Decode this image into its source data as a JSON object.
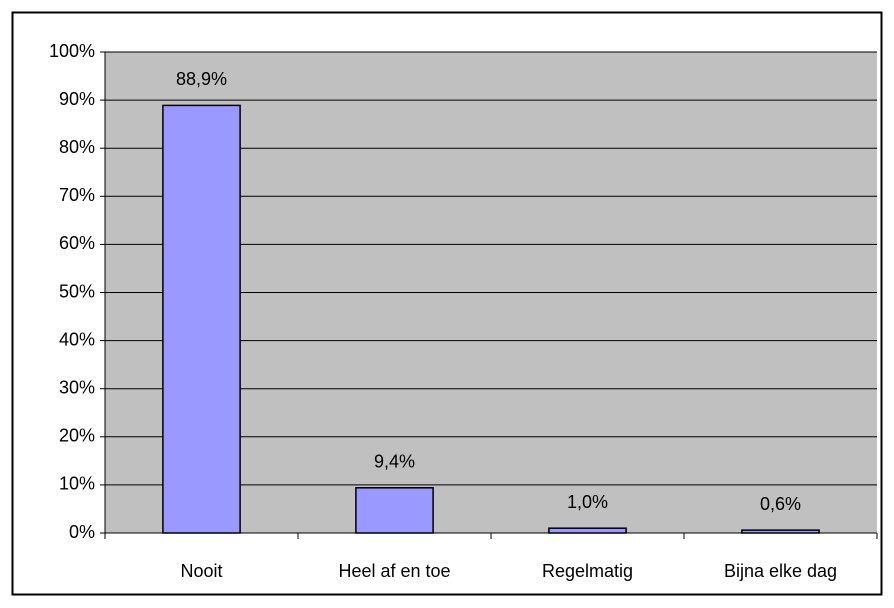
{
  "chart_data": {
    "type": "bar",
    "categories": [
      "Nooit",
      "Heel af en toe",
      "Regelmatig",
      "Bijna elke dag"
    ],
    "values": [
      88.9,
      9.4,
      1.0,
      0.6
    ],
    "value_labels": [
      "88,9%",
      "9,4%",
      "1,0%",
      "0,6%"
    ],
    "color": "#9999ff",
    "ylim": [
      0,
      100
    ],
    "yticks": [
      {
        "value": 0,
        "label": "0%"
      },
      {
        "value": 10,
        "label": "10%"
      },
      {
        "value": 20,
        "label": "20%"
      },
      {
        "value": 30,
        "label": "30%"
      },
      {
        "value": 40,
        "label": "40%"
      },
      {
        "value": 50,
        "label": "50%"
      },
      {
        "value": 60,
        "label": "60%"
      },
      {
        "value": 70,
        "label": "70%"
      },
      {
        "value": 80,
        "label": "80%"
      },
      {
        "value": 90,
        "label": "90%"
      },
      {
        "value": 100,
        "label": "100%"
      }
    ],
    "grid": true
  }
}
